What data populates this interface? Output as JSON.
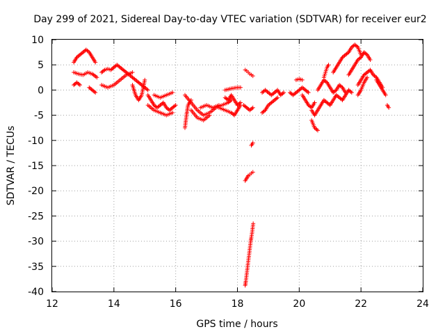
{
  "chart_data": {
    "type": "scatter",
    "title": "Day 299 of 2021, Sidereal Day-to-day VTEC variation (SDTVAR) for receiver eur2",
    "xlabel": "GPS time / hours",
    "ylabel": "SDTVAR / TECUs",
    "xlim": [
      12,
      24
    ],
    "ylim": [
      -40,
      10
    ],
    "xticks": [
      12,
      14,
      16,
      18,
      20,
      22,
      24
    ],
    "yticks": [
      -40,
      -35,
      -30,
      -25,
      -20,
      -15,
      -10,
      -5,
      0,
      5,
      10
    ],
    "grid": true,
    "marker": "+",
    "color": "#ff0000",
    "series": [
      {
        "name": "eur2",
        "segments": [
          {
            "x": [
              12.7,
              12.8,
              12.9,
              13.0,
              13.1,
              13.2,
              13.3,
              13.4
            ],
            "y": [
              5.5,
              6.5,
              7.0,
              7.5,
              8.0,
              7.5,
              6.5,
              5.5
            ]
          },
          {
            "x": [
              12.7,
              12.85,
              13.0,
              13.15,
              13.3,
              13.45
            ],
            "y": [
              3.5,
              3.2,
              3.0,
              3.5,
              3.2,
              2.5
            ]
          },
          {
            "x": [
              12.7,
              12.8,
              12.9
            ],
            "y": [
              1.0,
              1.5,
              1.0
            ]
          },
          {
            "x": [
              13.2,
              13.3,
              13.4
            ],
            "y": [
              0.5,
              0.0,
              -0.5
            ]
          },
          {
            "x": [
              13.6,
              13.7,
              13.8,
              13.9,
              14.0,
              14.1,
              14.2,
              14.3,
              14.4,
              14.5,
              14.6,
              14.7,
              14.8,
              14.9,
              15.0,
              15.1
            ],
            "y": [
              3.5,
              4.0,
              4.2,
              4.0,
              4.5,
              5.0,
              4.5,
              4.0,
              3.5,
              3.0,
              2.5,
              2.0,
              1.5,
              1.0,
              0.5,
              0.0
            ]
          },
          {
            "x": [
              13.6,
              13.8,
              14.0,
              14.2,
              14.4,
              14.6
            ],
            "y": [
              1.0,
              0.5,
              1.0,
              2.0,
              3.0,
              3.5
            ]
          },
          {
            "x": [
              14.6,
              14.7,
              14.8,
              14.9,
              15.0
            ],
            "y": [
              1.0,
              -1.0,
              -2.0,
              -1.0,
              2.0
            ]
          },
          {
            "x": [
              15.1,
              15.2,
              15.3,
              15.4,
              15.5,
              15.6,
              15.7,
              15.8,
              15.9,
              16.0
            ],
            "y": [
              -1.0,
              -2.0,
              -3.0,
              -3.5,
              -3.0,
              -2.5,
              -3.5,
              -4.0,
              -3.5,
              -3.0
            ]
          },
          {
            "x": [
              15.1,
              15.3,
              15.5,
              15.7,
              15.9
            ],
            "y": [
              -3.0,
              -4.0,
              -4.5,
              -5.0,
              -4.5
            ]
          },
          {
            "x": [
              15.3,
              15.5,
              15.7,
              15.9
            ],
            "y": [
              -1.0,
              -1.5,
              -1.0,
              -0.5
            ]
          },
          {
            "x": [
              16.3,
              16.35,
              16.4,
              16.5
            ],
            "y": [
              -7.5,
              -5.0,
              -3.0,
              -2.0
            ]
          },
          {
            "x": [
              16.3,
              16.5,
              16.7,
              16.9,
              17.1,
              17.3,
              17.5,
              17.7,
              17.8
            ],
            "y": [
              -1.0,
              -2.5,
              -4.0,
              -5.0,
              -4.5,
              -3.5,
              -3.0,
              -2.5,
              -2.0
            ]
          },
          {
            "x": [
              16.5,
              16.7,
              16.9,
              17.1
            ],
            "y": [
              -4.0,
              -5.5,
              -6.0,
              -5.0
            ]
          },
          {
            "x": [
              16.8,
              17.0,
              17.2,
              17.4
            ],
            "y": [
              -3.5,
              -3.0,
              -3.5,
              -3.0
            ]
          },
          {
            "x": [
              17.4,
              17.6,
              17.8,
              17.9,
              18.0,
              18.1
            ],
            "y": [
              -3.5,
              -4.0,
              -4.5,
              -5.0,
              -4.0,
              -3.0
            ]
          },
          {
            "x": [
              17.6,
              17.7,
              17.8,
              17.9,
              18.0,
              18.1
            ],
            "y": [
              -1.5,
              -2.0,
              -1.0,
              -2.0,
              -3.0,
              -2.5
            ]
          },
          {
            "x": [
              17.6,
              17.8,
              18.0,
              18.1
            ],
            "y": [
              0.0,
              0.3,
              0.5,
              0.5
            ]
          },
          {
            "x": [
              18.25,
              18.3,
              18.35,
              18.4,
              18.45,
              18.5
            ],
            "y": [
              4.0,
              3.8,
              3.5,
              3.2,
              3.0,
              2.8
            ]
          },
          {
            "x": [
              18.2,
              18.3,
              18.4,
              18.5
            ],
            "y": [
              -3.0,
              -3.5,
              -4.0,
              -3.5
            ]
          },
          {
            "x": [
              18.45,
              18.5
            ],
            "y": [
              -11.0,
              -10.5
            ]
          },
          {
            "x": [
              18.25,
              18.3,
              18.35,
              18.4,
              18.45,
              18.5
            ],
            "y": [
              -18.0,
              -17.5,
              -17.0,
              -16.8,
              -16.5,
              -16.3
            ]
          },
          {
            "x": [
              18.25,
              18.27,
              18.29,
              18.31,
              18.33,
              18.35,
              18.37,
              18.39,
              18.41,
              18.43,
              18.45,
              18.47,
              18.49,
              18.51
            ],
            "y": [
              -38.8,
              -38.0,
              -37.0,
              -36.0,
              -35.0,
              -34.0,
              -33.0,
              -32.0,
              -31.0,
              -30.0,
              -29.2,
              -28.5,
              -27.5,
              -26.5
            ]
          },
          {
            "x": [
              18.8,
              18.9,
              19.0,
              19.1,
              19.2,
              19.3,
              19.4,
              19.5
            ],
            "y": [
              -0.5,
              0.0,
              -0.5,
              -1.0,
              -0.5,
              0.0,
              -1.0,
              -0.5
            ]
          },
          {
            "x": [
              18.8,
              18.9,
              19.0,
              19.1,
              19.2,
              19.3
            ],
            "y": [
              -4.5,
              -4.0,
              -3.0,
              -2.5,
              -2.0,
              -1.5
            ]
          },
          {
            "x": [
              19.7,
              19.8,
              19.9,
              20.0,
              20.1,
              20.2,
              20.3
            ],
            "y": [
              -0.5,
              -1.0,
              -0.5,
              0.0,
              0.5,
              0.0,
              -0.5
            ]
          },
          {
            "x": [
              19.9,
              20.0,
              20.1
            ],
            "y": [
              2.0,
              2.2,
              2.0
            ]
          },
          {
            "x": [
              20.1,
              20.2,
              20.3,
              20.4,
              20.5
            ],
            "y": [
              -1.0,
              -2.0,
              -3.0,
              -3.5,
              -2.5
            ]
          },
          {
            "x": [
              20.4,
              20.5,
              20.6,
              20.7,
              20.8,
              20.9,
              21.0,
              21.1,
              21.2,
              21.3,
              21.4,
              21.5,
              21.6,
              21.7
            ],
            "y": [
              -4.0,
              -5.0,
              -4.0,
              -3.0,
              -2.0,
              -2.5,
              -3.0,
              -2.0,
              -1.0,
              -1.5,
              -2.0,
              -1.0,
              0.0,
              -0.5
            ]
          },
          {
            "x": [
              20.4,
              20.5,
              20.6
            ],
            "y": [
              -6.0,
              -7.5,
              -8.0
            ]
          },
          {
            "x": [
              20.6,
              20.7,
              20.8,
              20.9,
              21.0,
              21.1,
              21.2,
              21.3,
              21.4,
              21.5
            ],
            "y": [
              0.0,
              1.0,
              2.0,
              1.5,
              0.5,
              -0.5,
              0.0,
              1.0,
              0.5,
              -0.5
            ]
          },
          {
            "x": [
              20.8,
              20.85,
              20.9,
              20.95
            ],
            "y": [
              2.5,
              3.5,
              4.5,
              5.0
            ]
          },
          {
            "x": [
              21.1,
              21.2,
              21.3,
              21.4,
              21.5,
              21.6,
              21.7,
              21.8,
              21.9,
              22.0
            ],
            "y": [
              3.5,
              4.5,
              5.5,
              6.5,
              7.0,
              7.5,
              8.5,
              9.0,
              8.5,
              7.0
            ]
          },
          {
            "x": [
              21.6,
              21.7,
              21.8,
              21.9,
              22.0,
              22.1,
              22.2,
              22.3
            ],
            "y": [
              3.0,
              4.0,
              5.0,
              6.0,
              6.5,
              7.5,
              7.0,
              6.0
            ]
          },
          {
            "x": [
              21.9,
              22.0,
              22.1,
              22.2,
              22.3,
              22.4,
              22.5,
              22.6,
              22.7
            ],
            "y": [
              1.0,
              2.0,
              3.0,
              3.5,
              4.0,
              3.0,
              2.5,
              1.5,
              0.5
            ]
          },
          {
            "x": [
              21.9,
              22.0,
              22.1,
              22.2
            ],
            "y": [
              -1.0,
              0.0,
              1.5,
              2.5
            ]
          },
          {
            "x": [
              22.5,
              22.6,
              22.7,
              22.8
            ],
            "y": [
              2.0,
              1.0,
              0.0,
              -1.0
            ]
          },
          {
            "x": [
              22.85,
              22.9
            ],
            "y": [
              -3.0,
              -3.5
            ]
          }
        ]
      }
    ]
  }
}
